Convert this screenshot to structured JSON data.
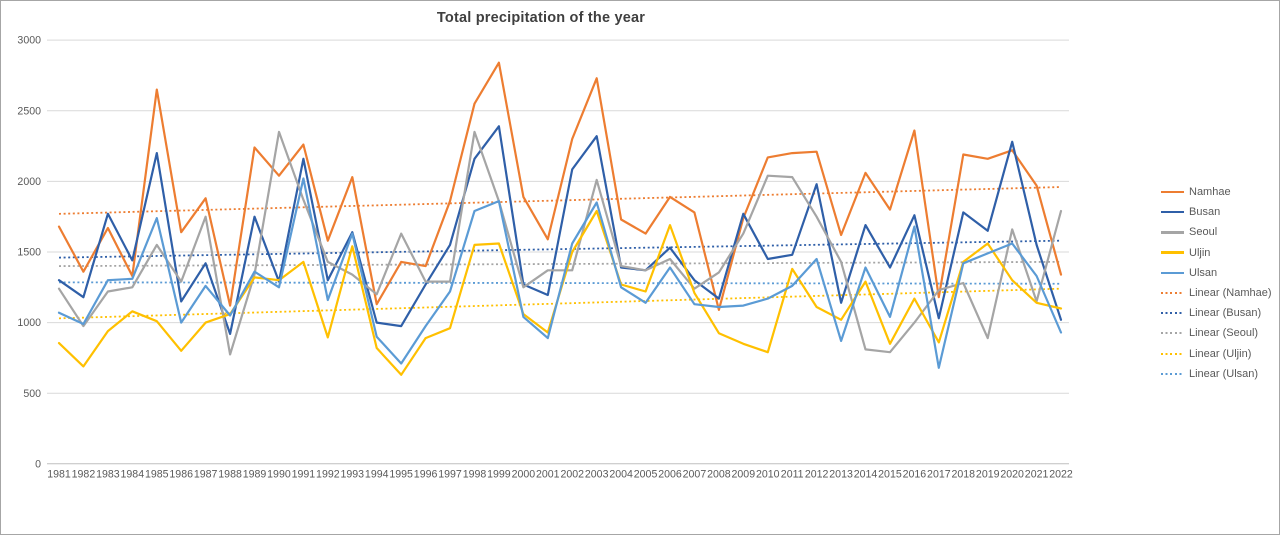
{
  "chart_data": {
    "type": "line",
    "title": "Total precipitation of the year",
    "ylim": [
      0,
      3000
    ],
    "yticks": [
      0,
      500,
      1000,
      1500,
      2000,
      2500,
      3000
    ],
    "grid": true,
    "legend_position": "right",
    "categories": [
      1981,
      1982,
      1983,
      1984,
      1985,
      1986,
      1987,
      1988,
      1989,
      1990,
      1991,
      1992,
      1993,
      1994,
      1995,
      1996,
      1997,
      1998,
      1999,
      2000,
      2001,
      2002,
      2003,
      2004,
      2005,
      2006,
      2007,
      2008,
      2009,
      2010,
      2011,
      2012,
      2013,
      2014,
      2015,
      2016,
      2017,
      2018,
      2019,
      2020,
      2021,
      2022
    ],
    "series": [
      {
        "name": "Namhae",
        "color": "#ED7D31",
        "values": [
          1680,
          1360,
          1670,
          1330,
          2650,
          1640,
          1880,
          1120,
          2240,
          2040,
          2260,
          1580,
          2030,
          1130,
          1430,
          1400,
          1860,
          2550,
          2840,
          1890,
          1590,
          2300,
          2730,
          1730,
          1630,
          1890,
          1780,
          1090,
          1740,
          2170,
          2200,
          2210,
          1620,
          2060,
          1800,
          2360,
          1180,
          2190,
          2160,
          2220,
          1970,
          1340
        ]
      },
      {
        "name": "Busan",
        "color": "#2F5FA8",
        "values": [
          1300,
          1180,
          1770,
          1440,
          2200,
          1150,
          1420,
          920,
          1750,
          1290,
          2160,
          1300,
          1640,
          1000,
          975,
          1270,
          1550,
          2160,
          2390,
          1270,
          1195,
          2085,
          2320,
          1390,
          1370,
          1530,
          1300,
          1170,
          1770,
          1450,
          1480,
          1980,
          1140,
          1690,
          1390,
          1760,
          1030,
          1780,
          1650,
          2280,
          1550,
          1020
        ]
      },
      {
        "name": "Seoul",
        "color": "#A5A5A5",
        "values": [
          1240,
          975,
          1220,
          1250,
          1550,
          1290,
          1750,
          775,
          1340,
          2350,
          1870,
          1430,
          1340,
          1200,
          1630,
          1290,
          1290,
          2350,
          1860,
          1250,
          1370,
          1370,
          2010,
          1400,
          1370,
          1450,
          1240,
          1355,
          1630,
          2040,
          2030,
          1750,
          1430,
          810,
          790,
          1000,
          1230,
          1280,
          890,
          1660,
          1150,
          1790
        ]
      },
      {
        "name": "Uljin",
        "color": "#FFC000",
        "values": [
          855,
          690,
          940,
          1080,
          1010,
          800,
          1000,
          1060,
          1320,
          1300,
          1430,
          895,
          1540,
          820,
          630,
          890,
          960,
          1550,
          1560,
          1060,
          930,
          1500,
          1790,
          1270,
          1220,
          1690,
          1210,
          925,
          850,
          790,
          1380,
          1110,
          1020,
          1290,
          850,
          1170,
          860,
          1430,
          1560,
          1300,
          1140,
          1100
        ]
      },
      {
        "name": "Ulsan",
        "color": "#5B9BD5",
        "values": [
          1070,
          990,
          1300,
          1310,
          1740,
          1000,
          1260,
          1050,
          1360,
          1250,
          2020,
          1160,
          1630,
          900,
          710,
          975,
          1220,
          1790,
          1860,
          1040,
          890,
          1560,
          1850,
          1250,
          1140,
          1390,
          1130,
          1110,
          1120,
          1170,
          1260,
          1450,
          870,
          1390,
          1040,
          1680,
          680,
          1420,
          1490,
          1560,
          1330,
          930
        ]
      }
    ],
    "trendlines": [
      {
        "name": "Linear (Namhae)",
        "color": "#ED7D31",
        "start": 1770,
        "end": 1960
      },
      {
        "name": "Linear (Busan)",
        "color": "#2F5FA8",
        "start": 1460,
        "end": 1580
      },
      {
        "name": "Linear (Seoul)",
        "color": "#A5A5A5",
        "start": 1400,
        "end": 1430
      },
      {
        "name": "Linear (Uljin)",
        "color": "#FFC000",
        "start": 1030,
        "end": 1240
      },
      {
        "name": "Linear (Ulsan)",
        "color": "#5B9BD5",
        "start": 1285,
        "end": 1275
      }
    ]
  }
}
